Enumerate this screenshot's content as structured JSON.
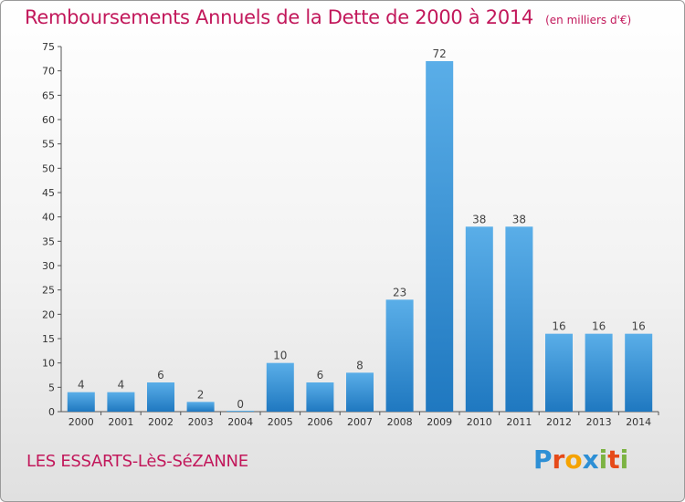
{
  "title": "Remboursements Annuels de la Dette de 2000 à 2014",
  "subtitle": "(en milliers d'€)",
  "commune": "LES ESSARTS-LèS-SéZANNE",
  "logo": {
    "letters": [
      "P",
      "r",
      "o",
      "x",
      "i",
      "t",
      "i"
    ],
    "colors": [
      "#2d8fd5",
      "#e64a19",
      "#f5a300",
      "#2d8fd5",
      "#7cb342",
      "#e64a19",
      "#7cb342"
    ]
  },
  "colors": {
    "bar_top": "#5aaee8",
    "bar_bottom": "#1f78c0",
    "accent": "#c2185b"
  },
  "chart_data": {
    "type": "bar",
    "categories": [
      "2000",
      "2001",
      "2002",
      "2003",
      "2004",
      "2005",
      "2006",
      "2007",
      "2008",
      "2009",
      "2010",
      "2011",
      "2012",
      "2013",
      "2014"
    ],
    "values": [
      4,
      4,
      6,
      2,
      0,
      10,
      6,
      8,
      23,
      72,
      38,
      38,
      16,
      16,
      16
    ],
    "yticks": [
      0,
      5,
      10,
      15,
      20,
      25,
      30,
      35,
      40,
      45,
      50,
      55,
      60,
      65,
      70,
      75
    ],
    "ylim": [
      0,
      75
    ],
    "grid": false
  }
}
